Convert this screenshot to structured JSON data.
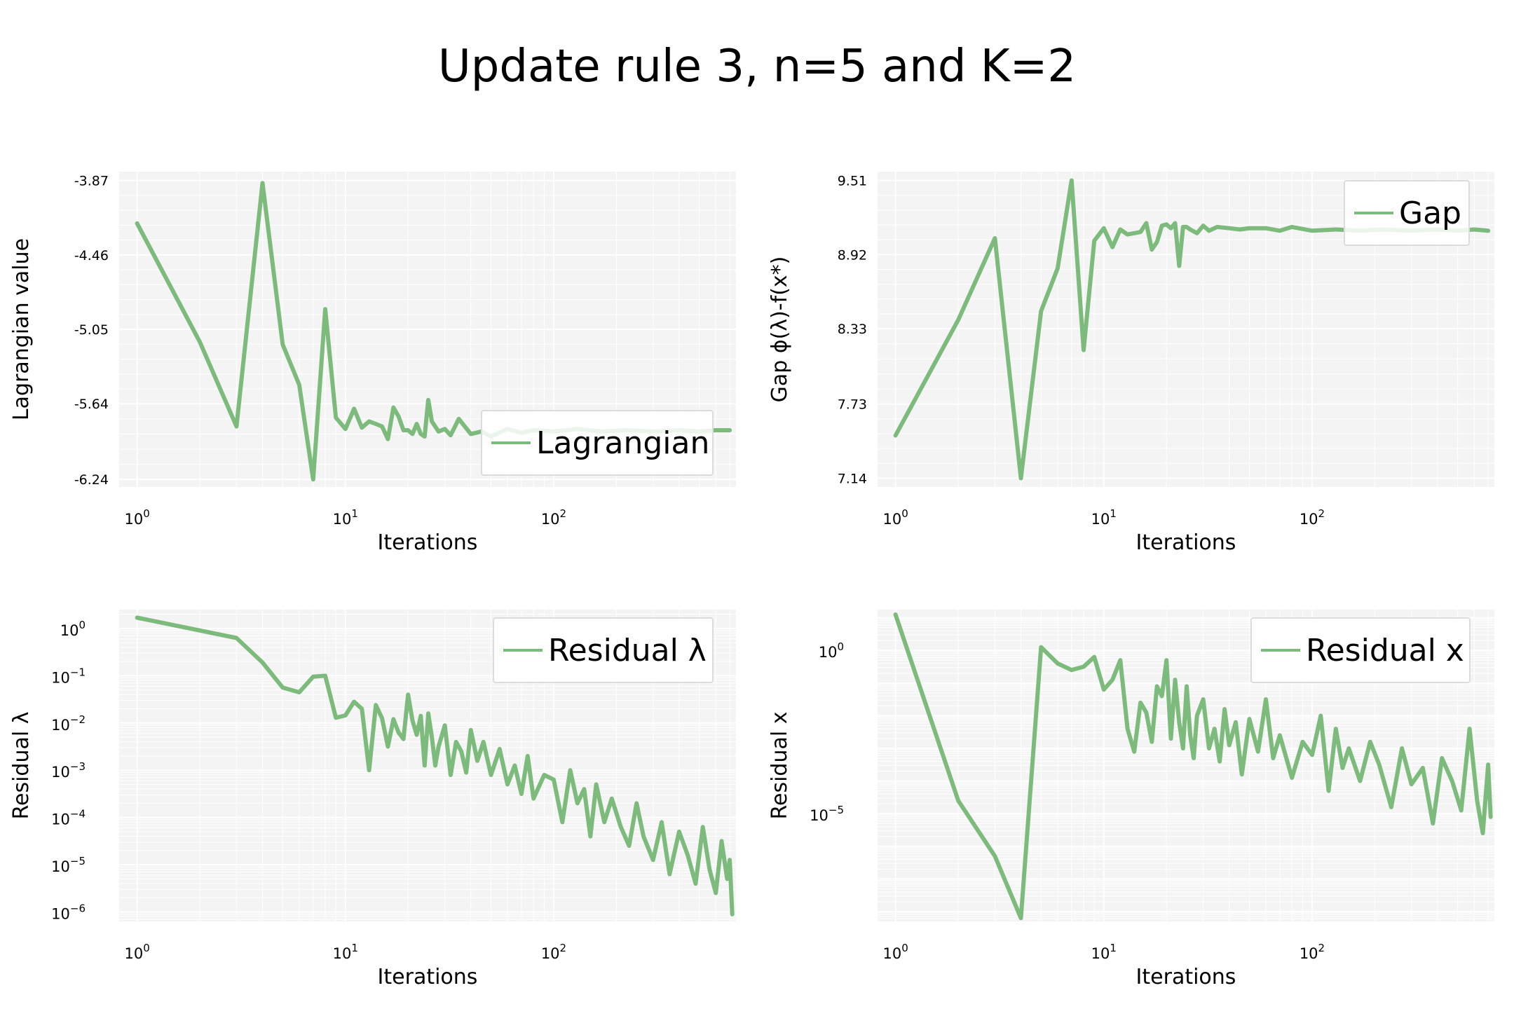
{
  "figure": {
    "title": "Update rule 3, n=5 and K=2"
  },
  "style": {
    "line_color": "#7dbb7d",
    "panel_bg": "#f4f4f4",
    "grid_color": "#ffffff"
  },
  "chart_data": [
    {
      "type": "line",
      "xscale": "log",
      "yscale": "linear",
      "xlim": [
        0.82,
        750
      ],
      "ylim": [
        -6.3,
        -3.8
      ],
      "xlabel": "Iterations",
      "ylabel": "Lagrangian value",
      "xticks": [
        1,
        10,
        100
      ],
      "xtick_labels": [
        {
          "base": "10",
          "exp": "0"
        },
        {
          "base": "10",
          "exp": "1"
        },
        {
          "base": "10",
          "exp": "2"
        }
      ],
      "yticks": [
        -6.24,
        -5.64,
        -5.05,
        -4.46,
        -3.87
      ],
      "ytick_labels": [
        "-6.24",
        "-5.64",
        "-5.05",
        "-4.46",
        "-3.87"
      ],
      "legend": {
        "label": "Lagrangian",
        "position": "lower-right"
      },
      "grid": true,
      "series": [
        {
          "name": "Lagrangian",
          "x": [
            1,
            2,
            3,
            4,
            5,
            6,
            7,
            8,
            9,
            10,
            11,
            12,
            13,
            14,
            15,
            16,
            17,
            18,
            19,
            20,
            21,
            22,
            23,
            24,
            25,
            26,
            28,
            30,
            32,
            35,
            40,
            45,
            50,
            60,
            70,
            80,
            100,
            130,
            170,
            220,
            300,
            400,
            500,
            600,
            700
          ],
          "y": [
            -4.21,
            -5.15,
            -5.82,
            -3.89,
            -5.17,
            -5.49,
            -6.24,
            -4.89,
            -5.75,
            -5.84,
            -5.68,
            -5.83,
            -5.78,
            -5.8,
            -5.82,
            -5.92,
            -5.67,
            -5.74,
            -5.85,
            -5.85,
            -5.88,
            -5.8,
            -5.88,
            -5.9,
            -5.61,
            -5.78,
            -5.86,
            -5.84,
            -5.89,
            -5.76,
            -5.88,
            -5.86,
            -5.9,
            -5.84,
            -5.87,
            -5.85,
            -5.86,
            -5.84,
            -5.86,
            -5.85,
            -5.86,
            -5.85,
            -5.86,
            -5.85,
            -5.85
          ]
        }
      ]
    },
    {
      "type": "line",
      "xscale": "log",
      "yscale": "linear",
      "xlim": [
        0.82,
        750
      ],
      "ylim": [
        7.07,
        9.58
      ],
      "xlabel": "Iterations",
      "ylabel": "Gap ϕ(λ)-f(x*)",
      "xticks": [
        1,
        10,
        100
      ],
      "xtick_labels": [
        {
          "base": "10",
          "exp": "0"
        },
        {
          "base": "10",
          "exp": "1"
        },
        {
          "base": "10",
          "exp": "2"
        }
      ],
      "yticks": [
        7.14,
        7.73,
        8.33,
        8.92,
        9.51
      ],
      "ytick_labels": [
        "7.14",
        "7.73",
        "8.33",
        "8.92",
        "9.51"
      ],
      "legend": {
        "label": "Gap",
        "position": "upper-right"
      },
      "grid": true,
      "series": [
        {
          "name": "Gap",
          "x": [
            1,
            2,
            3,
            4,
            5,
            6,
            7,
            8,
            9,
            10,
            11,
            12,
            13,
            14,
            15,
            16,
            17,
            18,
            19,
            20,
            21,
            22,
            23,
            24,
            25,
            26,
            28,
            30,
            32,
            35,
            40,
            45,
            50,
            60,
            70,
            80,
            100,
            130,
            170,
            220,
            300,
            400,
            500,
            600,
            700
          ],
          "y": [
            7.48,
            8.4,
            9.05,
            7.14,
            8.47,
            8.81,
            9.51,
            8.16,
            9.03,
            9.13,
            8.98,
            9.12,
            9.08,
            9.09,
            9.1,
            9.17,
            8.96,
            9.02,
            9.15,
            9.16,
            9.13,
            9.17,
            8.83,
            9.14,
            9.14,
            9.12,
            9.09,
            9.15,
            9.11,
            9.14,
            9.13,
            9.12,
            9.13,
            9.13,
            9.11,
            9.14,
            9.11,
            9.12,
            9.11,
            9.12,
            9.11,
            9.12,
            9.11,
            9.12,
            9.11
          ]
        }
      ]
    },
    {
      "type": "line",
      "xscale": "log",
      "yscale": "log",
      "xlim": [
        0.82,
        750
      ],
      "ylim_log10": [
        -6.2,
        0.4
      ],
      "xlabel": "Iterations",
      "ylabel": "Residual λ",
      "xticks": [
        1,
        10,
        100
      ],
      "xtick_labels": [
        {
          "base": "10",
          "exp": "0"
        },
        {
          "base": "10",
          "exp": "1"
        },
        {
          "base": "10",
          "exp": "2"
        }
      ],
      "ytick_log10": [
        0,
        -1,
        -2,
        -3,
        -4,
        -5,
        -6
      ],
      "ytick_labels": [
        {
          "base": "10",
          "exp": "0"
        },
        {
          "base": "10",
          "exp": "−1"
        },
        {
          "base": "10",
          "exp": "−2"
        },
        {
          "base": "10",
          "exp": "−3"
        },
        {
          "base": "10",
          "exp": "−4"
        },
        {
          "base": "10",
          "exp": "−5"
        },
        {
          "base": "10",
          "exp": "−6"
        }
      ],
      "legend": {
        "label": "Residual λ",
        "position": "upper-right"
      },
      "grid": true,
      "series": [
        {
          "name": "Residual λ",
          "x": [
            1,
            3,
            4,
            5,
            6,
            7,
            8,
            9,
            10,
            11,
            12,
            13,
            14,
            15,
            16,
            17,
            18,
            19,
            20,
            21,
            22,
            23,
            24,
            25,
            26,
            27,
            28,
            30,
            32,
            34,
            36,
            38,
            40,
            43,
            46,
            50,
            55,
            60,
            65,
            70,
            75,
            80,
            90,
            100,
            110,
            120,
            130,
            140,
            150,
            160,
            175,
            190,
            210,
            230,
            250,
            270,
            300,
            330,
            360,
            400,
            440,
            480,
            520,
            560,
            600,
            640,
            680,
            700,
            720
          ],
          "y_log10": [
            0.23,
            -0.2,
            -0.72,
            -1.25,
            -1.35,
            -1.02,
            -1.0,
            -1.89,
            -1.84,
            -1.55,
            -1.7,
            -3.0,
            -1.62,
            -1.9,
            -2.5,
            -1.92,
            -2.2,
            -2.34,
            -1.4,
            -1.95,
            -2.25,
            -1.85,
            -2.9,
            -1.8,
            -2.3,
            -2.9,
            -2.5,
            -2.05,
            -3.1,
            -2.4,
            -2.6,
            -3.05,
            -2.15,
            -2.8,
            -2.4,
            -3.1,
            -2.55,
            -3.3,
            -2.9,
            -3.5,
            -2.7,
            -3.6,
            -3.1,
            -3.2,
            -4.1,
            -3.0,
            -3.7,
            -3.4,
            -4.4,
            -3.3,
            -4.1,
            -3.6,
            -4.2,
            -4.6,
            -3.7,
            -4.4,
            -4.9,
            -4.1,
            -5.2,
            -4.3,
            -4.8,
            -5.4,
            -4.2,
            -5.1,
            -5.6,
            -4.5,
            -5.3,
            -4.9,
            -6.05
          ]
        }
      ]
    },
    {
      "type": "line",
      "xscale": "log",
      "yscale": "log",
      "xlim": [
        0.82,
        750
      ],
      "ylim_log10": [
        -8.3,
        1.25
      ],
      "xlabel": "Iterations",
      "ylabel": "Residual x",
      "xticks": [
        1,
        10,
        100
      ],
      "xtick_labels": [
        {
          "base": "10",
          "exp": "0"
        },
        {
          "base": "10",
          "exp": "1"
        },
        {
          "base": "10",
          "exp": "2"
        }
      ],
      "ytick_log10": [
        0,
        -5
      ],
      "ytick_labels": [
        {
          "base": "10",
          "exp": "0"
        },
        {
          "base": "10",
          "exp": "−5"
        }
      ],
      "legend": {
        "label": "Residual x",
        "position": "upper-right"
      },
      "grid": true,
      "series": [
        {
          "name": "Residual x",
          "x": [
            1,
            2,
            3,
            4,
            5,
            6,
            7,
            8,
            9,
            10,
            11,
            12,
            13,
            14,
            15,
            16,
            17,
            18,
            19,
            20,
            21,
            22,
            23,
            24,
            25,
            26,
            27,
            28,
            30,
            32,
            34,
            36,
            38,
            40,
            43,
            46,
            50,
            55,
            60,
            65,
            70,
            80,
            90,
            100,
            110,
            120,
            130,
            140,
            150,
            170,
            190,
            210,
            240,
            270,
            300,
            340,
            380,
            420,
            470,
            520,
            570,
            620,
            660,
            700,
            720
          ],
          "y_log10": [
            1.1,
            -4.6,
            -6.3,
            -8.2,
            0.1,
            -0.4,
            -0.6,
            -0.5,
            -0.2,
            -1.2,
            -0.9,
            -0.3,
            -2.4,
            -3.1,
            -1.6,
            -1.9,
            -2.8,
            -1.1,
            -1.4,
            -0.3,
            -2.7,
            -0.9,
            -2.2,
            -3.0,
            -1.1,
            -2.6,
            -3.3,
            -2.0,
            -1.5,
            -3.0,
            -2.4,
            -3.4,
            -1.8,
            -2.9,
            -2.2,
            -3.8,
            -2.1,
            -3.1,
            -1.5,
            -3.3,
            -2.6,
            -3.9,
            -2.8,
            -3.2,
            -2.0,
            -4.3,
            -2.4,
            -3.6,
            -3.0,
            -4.0,
            -2.8,
            -3.5,
            -4.8,
            -3.0,
            -4.1,
            -3.6,
            -5.3,
            -3.3,
            -4.0,
            -4.9,
            -2.4,
            -4.6,
            -5.6,
            -3.5,
            -5.1
          ]
        }
      ]
    }
  ]
}
